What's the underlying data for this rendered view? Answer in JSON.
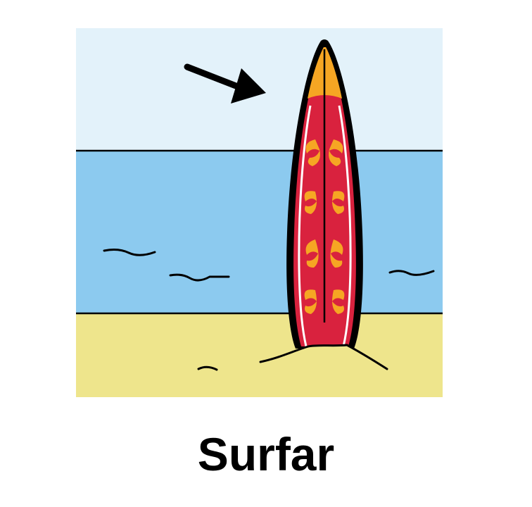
{
  "caption": "Surfar",
  "colors": {
    "sky": "#e3f2fa",
    "sea": "#8ccaef",
    "sand": "#eee58c",
    "board_red": "#d9223e",
    "board_orange": "#f6a623",
    "outline": "#000000"
  },
  "icons": [
    "arrow-icon",
    "surfboard-icon",
    "wave-icon",
    "sand-mound-icon"
  ]
}
